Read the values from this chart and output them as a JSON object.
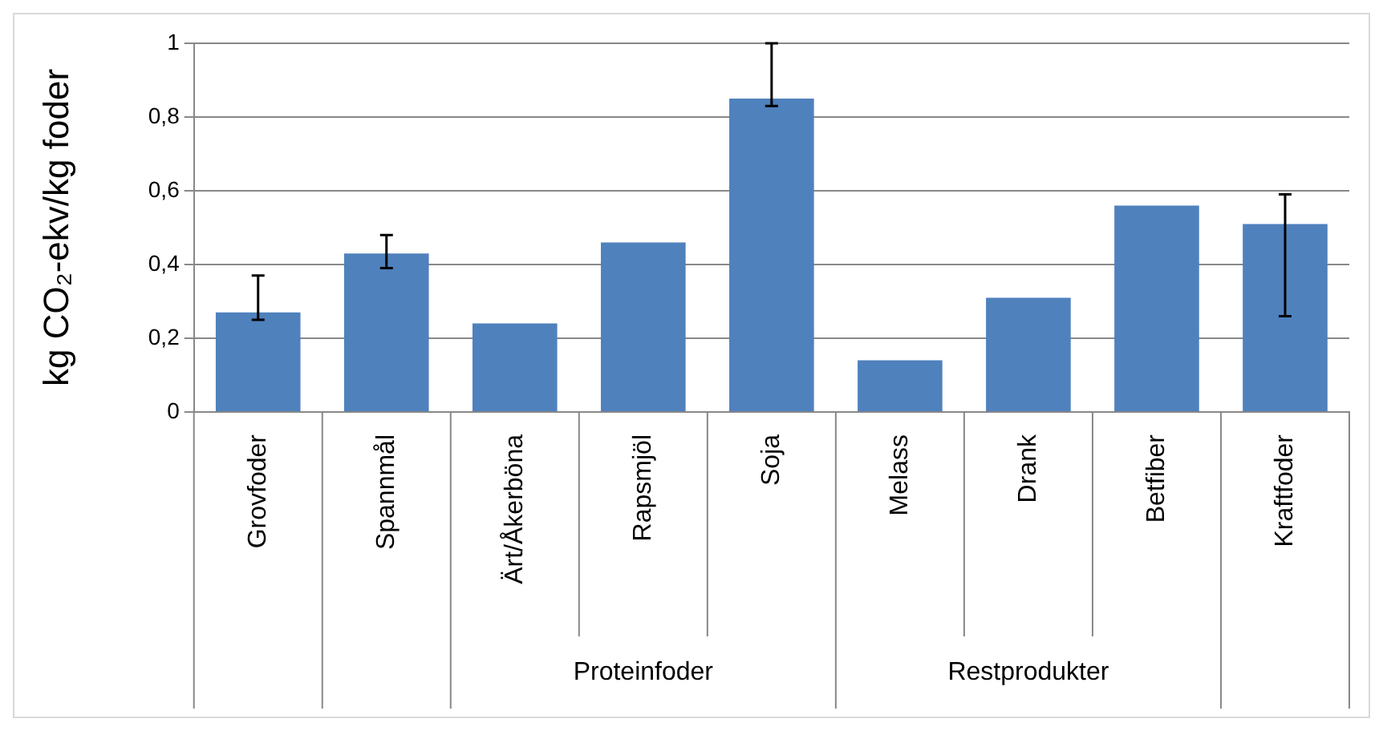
{
  "chart_data": {
    "type": "bar",
    "ylabel": "kg CO₂-ekv/kg foder",
    "categories": [
      "Grovfoder",
      "Spannmål",
      "Ärt/Åkerböna",
      "Rapsmjöl",
      "Soja",
      "Melass",
      "Drank",
      "Betfiber",
      "Kraftfoder"
    ],
    "values": [
      0.27,
      0.43,
      0.24,
      0.46,
      0.85,
      0.14,
      0.31,
      0.56,
      0.51
    ],
    "errors": [
      [
        0.25,
        0.37
      ],
      [
        0.39,
        0.48
      ],
      null,
      null,
      [
        0.83,
        1.0
      ],
      null,
      null,
      null,
      [
        0.26,
        0.59
      ]
    ],
    "color": "#4f81bd",
    "ylim": [
      0,
      1
    ],
    "yticks": [
      0,
      {
        "value": 0.2,
        "label": "0,2"
      },
      {
        "value": 0.4,
        "label": "0,4"
      },
      {
        "value": 0.6,
        "label": "0,6"
      },
      {
        "value": 0.8,
        "label": "0,8"
      },
      1
    ],
    "grid": "y",
    "annotations": [
      "Proteinfoder",
      "Restprodukter"
    ]
  }
}
